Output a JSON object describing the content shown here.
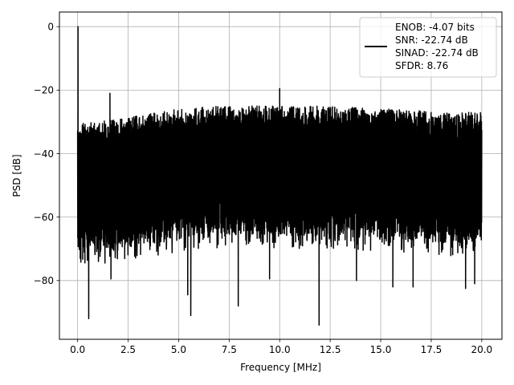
{
  "chart_data": {
    "type": "line",
    "xlabel": "Frequency [MHz]",
    "ylabel": "PSD [dB]",
    "xlim": [
      -0.9,
      21.0
    ],
    "ylim": [
      -98.5,
      4.6
    ],
    "xticks": [
      0.0,
      2.5,
      5.0,
      7.5,
      10.0,
      12.5,
      15.0,
      17.5,
      20.0
    ],
    "xtick_labels": [
      "0.0",
      "2.5",
      "5.0",
      "7.5",
      "10.0",
      "12.5",
      "15.0",
      "17.5",
      "20.0"
    ],
    "yticks": [
      0,
      -20,
      -40,
      -60,
      -80
    ],
    "ytick_labels": [
      "0",
      "−20",
      "−40",
      "−60",
      "−80"
    ],
    "grid": true,
    "legend_position": "top-right",
    "series": [
      {
        "name": "ENOB: -4.07 bits\nSNR: -22.74 dB\nSINAD: -22.74 dB\nSFDR: 8.76",
        "color": "#000000",
        "x_range": [
          0.0,
          20.0
        ],
        "upper_envelope": {
          "x": [
            0.0,
            0.5,
            1.0,
            2.0,
            3.0,
            4.0,
            5.0,
            6.0,
            7.0,
            8.0,
            9.0,
            10.0,
            11.0,
            12.0,
            13.0,
            14.0,
            15.0,
            16.0,
            17.0,
            18.0,
            19.0,
            20.0
          ],
          "y": [
            -31,
            -30,
            -30,
            -29,
            -28,
            -27,
            -26,
            -25.5,
            -25,
            -25,
            -25,
            -25,
            -25,
            -25,
            -25,
            -25.5,
            -26,
            -26,
            -26.5,
            -27,
            -27,
            -27
          ]
        },
        "lower_envelope": {
          "x": [
            0.0,
            0.5,
            1.0,
            2.0,
            3.0,
            4.0,
            5.0,
            6.0,
            7.0,
            8.0,
            9.0,
            10.0,
            11.0,
            12.0,
            13.0,
            14.0,
            15.0,
            16.0,
            17.0,
            18.0,
            19.0,
            20.0
          ],
          "y": [
            -72,
            -72,
            -71,
            -70,
            -69,
            -68,
            -67,
            -66,
            -66,
            -66,
            -66,
            -66,
            -66,
            -66,
            -66,
            -66.5,
            -67,
            -67,
            -68,
            -68,
            -68.5,
            -69
          ]
        },
        "peaks": [
          {
            "x": 0.02,
            "y": 0.0
          },
          {
            "x": 1.6,
            "y": -21.0
          },
          {
            "x": 10.0,
            "y": -19.5
          }
        ],
        "dips": [
          {
            "x": 0.55,
            "y": -92.0
          },
          {
            "x": 1.65,
            "y": -79.5
          },
          {
            "x": 5.45,
            "y": -84.5
          },
          {
            "x": 5.6,
            "y": -91.0
          },
          {
            "x": 7.95,
            "y": -88.0
          },
          {
            "x": 9.5,
            "y": -79.5
          },
          {
            "x": 11.95,
            "y": -94.0
          },
          {
            "x": 13.8,
            "y": -80.0
          },
          {
            "x": 15.6,
            "y": -82.0
          },
          {
            "x": 16.6,
            "y": -82.0
          },
          {
            "x": 19.2,
            "y": -82.5
          },
          {
            "x": 19.65,
            "y": -81.0
          }
        ]
      }
    ]
  }
}
